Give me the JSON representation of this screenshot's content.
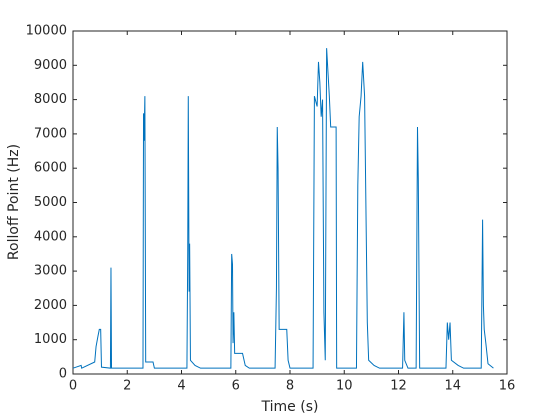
{
  "chart_data": {
    "type": "line",
    "xlabel": "Time (s)",
    "ylabel": "Rolloff Point (Hz)",
    "xlim": [
      0,
      16
    ],
    "xticks": [
      0,
      2,
      4,
      6,
      8,
      10,
      12,
      14,
      16
    ],
    "ylim": [
      0,
      10000
    ],
    "yticks": [
      0,
      1000,
      2000,
      3000,
      4000,
      5000,
      6000,
      7000,
      8000,
      9000,
      10000
    ],
    "grid": false,
    "series": [
      {
        "color": "#0072bd",
        "x": [
          0,
          0.3,
          0.32,
          0.8,
          0.85,
          0.92,
          0.97,
          1.02,
          1.05,
          1.38,
          1.4,
          1.42,
          2.58,
          2.6,
          2.62,
          2.65,
          2.68,
          2.95,
          3.0,
          4.2,
          4.23,
          4.25,
          4.28,
          4.3,
          4.33,
          4.5,
          4.7,
          5.82,
          5.85,
          5.88,
          5.9,
          5.93,
          5.96,
          6.25,
          6.35,
          6.5,
          7.45,
          7.5,
          7.53,
          7.56,
          7.6,
          7.88,
          7.93,
          8.0,
          8.85,
          8.9,
          9.0,
          9.05,
          9.1,
          9.15,
          9.2,
          9.25,
          9.3,
          9.35,
          9.45,
          9.5,
          9.7,
          9.72,
          10.45,
          10.5,
          10.55,
          10.62,
          10.68,
          10.75,
          10.85,
          10.9,
          11.1,
          11.3,
          12.15,
          12.2,
          12.23,
          12.35,
          12.65,
          12.7,
          12.73,
          12.78,
          13.75,
          13.8,
          13.85,
          13.9,
          13.95,
          14.2,
          14.4,
          15.05,
          15.1,
          15.13,
          15.16,
          15.22,
          15.3,
          15.5
        ],
        "values": [
          170,
          250,
          170,
          350,
          800,
          1100,
          1300,
          1300,
          200,
          170,
          3100,
          170,
          170,
          7600,
          6800,
          8100,
          350,
          350,
          170,
          170,
          3600,
          8100,
          2400,
          3800,
          400,
          250,
          170,
          170,
          3500,
          3200,
          900,
          1800,
          600,
          600,
          250,
          170,
          170,
          2500,
          7200,
          6000,
          1300,
          1300,
          400,
          170,
          170,
          8100,
          7800,
          9100,
          8500,
          7500,
          8000,
          1800,
          400,
          9500,
          8100,
          7200,
          7200,
          170,
          170,
          5500,
          7500,
          8100,
          9100,
          8100,
          1500,
          400,
          250,
          170,
          170,
          1800,
          400,
          170,
          170,
          7200,
          5700,
          170,
          170,
          1500,
          1000,
          1500,
          400,
          250,
          170,
          170,
          4500,
          2000,
          1300,
          900,
          300,
          170
        ]
      }
    ]
  }
}
